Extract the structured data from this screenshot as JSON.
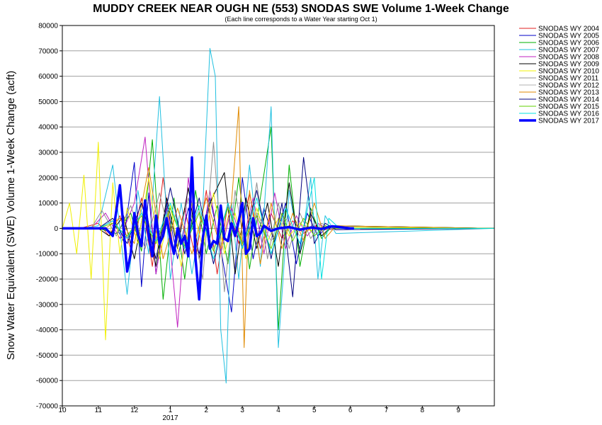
{
  "chart_data": {
    "type": "line",
    "title": "MUDDY CREEK NEAR OUGH NE (553) SNODAS SWE Volume 1-Week Change",
    "subtitle": "(Each line corresponds to a Water Year starting Oct 1)",
    "ylabel": "Snow Water Equivalent (SWE) Volume 1-Week Change (acft)",
    "xlabel": "",
    "x_axis_units": "month (10 = Oct 1 of water-year start, 13 = Jan 1, 22 = Oct 1 end)",
    "xlim": [
      10,
      22
    ],
    "ylim": [
      -70000,
      80000
    ],
    "x_ticks": [
      {
        "at": 10,
        "label": "10"
      },
      {
        "at": 11,
        "label": "11"
      },
      {
        "at": 12,
        "label": "12"
      },
      {
        "at": 13,
        "label": "1"
      },
      {
        "at": 14,
        "label": "2"
      },
      {
        "at": 15,
        "label": "3"
      },
      {
        "at": 16,
        "label": "4"
      },
      {
        "at": 17,
        "label": "5"
      },
      {
        "at": 18,
        "label": "6"
      },
      {
        "at": 19,
        "label": "7"
      },
      {
        "at": 20,
        "label": "8"
      },
      {
        "at": 21,
        "label": "9"
      }
    ],
    "year_label": {
      "at": 13,
      "label": "2017"
    },
    "y_ticks": [
      80000,
      70000,
      60000,
      50000,
      40000,
      30000,
      20000,
      10000,
      0,
      -10000,
      -20000,
      -30000,
      -40000,
      -50000,
      -60000,
      -70000
    ],
    "grid": "horizontal",
    "legend_position": "right",
    "series": [
      {
        "name": "SNODAS WY 2004",
        "color": "#e02020",
        "bold": false,
        "x": [
          10,
          10.5,
          11,
          11.3,
          11.6,
          11.9,
          12.2,
          12.5,
          12.8,
          13.1,
          13.4,
          13.7,
          14,
          14.3,
          14.6,
          14.9,
          15.2,
          15.5,
          15.8,
          16.1,
          16.4,
          16.7,
          17,
          17.3,
          17.6,
          22
        ],
        "y": [
          0,
          0,
          2000,
          -3000,
          5000,
          -8000,
          12000,
          -15000,
          20000,
          -10000,
          8000,
          -12000,
          15000,
          -18000,
          10000,
          -6000,
          14000,
          -8000,
          6000,
          -4000,
          3000,
          -2000,
          1000,
          -500,
          0,
          0
        ]
      },
      {
        "name": "SNODAS WY 2005",
        "color": "#0000c8",
        "bold": false,
        "x": [
          10,
          11,
          11.4,
          11.7,
          12,
          12.2,
          12.4,
          12.6,
          12.9,
          13.2,
          13.5,
          13.8,
          14.1,
          14.4,
          14.7,
          15,
          15.3,
          15.6,
          15.9,
          16.2,
          16.5,
          16.8,
          17.1,
          17.4,
          22
        ],
        "y": [
          0,
          0,
          3000,
          -5000,
          26000,
          -23000,
          14000,
          -18000,
          10000,
          -12000,
          8000,
          -10000,
          12000,
          -8000,
          -33000,
          20000,
          -12000,
          8000,
          -6000,
          10000,
          -14000,
          6000,
          -3000,
          1000,
          0
        ]
      },
      {
        "name": "SNODAS WY 2006",
        "color": "#00b000",
        "bold": false,
        "x": [
          10,
          11,
          11.5,
          11.9,
          12.2,
          12.5,
          12.8,
          13.1,
          13.4,
          13.7,
          14,
          14.3,
          14.6,
          14.9,
          15.2,
          15.5,
          15.8,
          16,
          16.3,
          16.6,
          16.9,
          17.2,
          17.5,
          22
        ],
        "y": [
          0,
          0,
          -2000,
          6000,
          -9000,
          35000,
          -28000,
          12000,
          -20000,
          15000,
          -10000,
          9000,
          -14000,
          20000,
          -16000,
          12000,
          40000,
          -40000,
          25000,
          -15000,
          8000,
          -4000,
          1000,
          0
        ]
      },
      {
        "name": "SNODAS WY 2007",
        "color": "#20c0e0",
        "bold": false,
        "x": [
          10,
          10.5,
          11,
          11.4,
          11.8,
          12.1,
          12.4,
          12.7,
          13,
          13.3,
          13.6,
          13.9,
          14.1,
          14.25,
          14.4,
          14.55,
          14.7,
          14.9,
          15.2,
          15.5,
          15.8,
          16,
          16.3,
          16.6,
          16.9,
          17.1,
          17.3,
          17.6,
          22
        ],
        "y": [
          0,
          0,
          1000,
          25000,
          -26000,
          15000,
          -10000,
          52000,
          -20000,
          10000,
          -18000,
          8000,
          71000,
          60000,
          -40000,
          -61000,
          10000,
          -20000,
          25000,
          -15000,
          48000,
          -47000,
          15000,
          -10000,
          20000,
          -20000,
          5000,
          -2000,
          0
        ]
      },
      {
        "name": "SNODAS WY 2008",
        "color": "#c020c0",
        "bold": false,
        "x": [
          10,
          10.8,
          11.2,
          11.6,
          12,
          12.3,
          12.6,
          12.9,
          13.2,
          13.5,
          13.8,
          14.1,
          14.4,
          14.7,
          15,
          15.3,
          15.6,
          15.9,
          16.2,
          16.5,
          16.8,
          17.1,
          17.4,
          22
        ],
        "y": [
          0,
          0,
          6000,
          -4000,
          10000,
          36000,
          -18000,
          8000,
          -39000,
          20000,
          -12000,
          15000,
          -10000,
          8000,
          -6000,
          12000,
          -10000,
          14000,
          -8000,
          5000,
          -3000,
          2000,
          -500,
          0
        ]
      },
      {
        "name": "SNODAS WY 2009",
        "color": "#000000",
        "bold": false,
        "x": [
          10,
          11,
          11.3,
          11.7,
          12,
          12.3,
          12.6,
          12.9,
          13.2,
          13.5,
          13.8,
          14.1,
          14.5,
          14.8,
          15.1,
          15.4,
          15.7,
          16,
          16.3,
          16.6,
          16.9,
          17.2,
          17.5,
          22
        ],
        "y": [
          0,
          0,
          -3000,
          5000,
          -12000,
          10000,
          -15000,
          12000,
          -8000,
          16000,
          -12000,
          10000,
          22000,
          -18000,
          12000,
          -8000,
          10000,
          -15000,
          18000,
          -10000,
          6000,
          -3000,
          1000,
          0
        ]
      },
      {
        "name": "SNODAS WY 2010",
        "color": "#f0f000",
        "bold": false,
        "x": [
          10,
          10.2,
          10.4,
          10.6,
          10.8,
          11,
          11.2,
          11.4,
          11.6,
          11.8,
          12.1,
          12.4,
          12.7,
          13,
          13.3,
          13.6,
          13.9,
          14.2,
          14.5,
          14.8,
          15.1,
          15.4,
          15.7,
          16,
          16.3,
          16.6,
          16.9,
          17.2,
          22
        ],
        "y": [
          0,
          10000,
          -10000,
          21000,
          -20000,
          34000,
          -44000,
          18000,
          -10000,
          8000,
          -6000,
          20000,
          -12000,
          9000,
          -15000,
          10000,
          -8000,
          14000,
          -10000,
          6000,
          -12000,
          8000,
          -5000,
          4000,
          -3000,
          2000,
          -1000,
          500,
          0
        ]
      },
      {
        "name": "SNODAS WY 2011",
        "color": "#909090",
        "bold": false,
        "x": [
          10,
          10.8,
          11.1,
          11.5,
          11.9,
          12.3,
          12.7,
          13.1,
          13.5,
          13.9,
          14.2,
          14.5,
          14.8,
          15.1,
          15.4,
          15.7,
          16,
          16.3,
          16.6,
          16.9,
          17.2,
          17.5,
          22
        ],
        "y": [
          0,
          0,
          7000,
          -3000,
          9000,
          -8000,
          14000,
          -10000,
          12000,
          -20000,
          34000,
          -25000,
          15000,
          -10000,
          18000,
          -12000,
          10000,
          -8000,
          6000,
          -4000,
          2000,
          -500,
          0
        ]
      },
      {
        "name": "SNODAS WY 2012",
        "color": "#b0b0b0",
        "bold": false,
        "x": [
          10,
          11,
          11.4,
          11.8,
          12.2,
          12.6,
          13,
          13.4,
          13.8,
          14.2,
          14.6,
          15,
          15.4,
          15.8,
          16.2,
          16.6,
          17,
          17.4,
          22
        ],
        "y": [
          0,
          0,
          3000,
          -4000,
          6000,
          -5000,
          8000,
          -6000,
          7000,
          -8000,
          9000,
          -7000,
          6000,
          -5000,
          4000,
          -3000,
          2000,
          -500,
          0
        ]
      },
      {
        "name": "SNODAS WY 2013",
        "color": "#e08a00",
        "bold": false,
        "x": [
          10,
          11.2,
          11.6,
          12,
          12.4,
          12.8,
          13.2,
          13.6,
          14,
          14.4,
          14.7,
          14.9,
          15.05,
          15.2,
          15.5,
          15.8,
          16.1,
          16.4,
          16.7,
          17,
          17.3,
          17.6,
          22
        ],
        "y": [
          0,
          0,
          4000,
          -6000,
          24000,
          -12000,
          8000,
          -10000,
          12000,
          -8000,
          10000,
          48000,
          -47000,
          15000,
          -14000,
          10000,
          -8000,
          6000,
          -5000,
          10000,
          -4000,
          1000,
          0
        ]
      },
      {
        "name": "SNODAS WY 2014",
        "color": "#000080",
        "bold": false,
        "x": [
          10,
          11,
          11.4,
          11.8,
          12.2,
          12.6,
          13,
          13.4,
          13.8,
          14.2,
          14.6,
          15,
          15.4,
          15.8,
          16.1,
          16.4,
          16.7,
          17,
          17.3,
          17.6,
          22
        ],
        "y": [
          0,
          0,
          4000,
          -6000,
          10000,
          -12000,
          16000,
          -10000,
          12000,
          -14000,
          10000,
          -8000,
          15000,
          -12000,
          10000,
          -27000,
          28000,
          -6000,
          2000,
          -500,
          0
        ]
      },
      {
        "name": "SNODAS WY 2015",
        "color": "#60d000",
        "bold": false,
        "x": [
          10,
          11,
          11.4,
          11.8,
          12.2,
          12.6,
          13,
          13.4,
          13.8,
          14.2,
          14.6,
          15,
          15.4,
          15.8,
          16.1,
          16.4,
          16.7,
          17,
          17.3,
          17.6,
          22
        ],
        "y": [
          0,
          0,
          2000,
          -3000,
          5000,
          -6000,
          8000,
          -7000,
          6000,
          -9000,
          8000,
          -6000,
          5000,
          -8000,
          6000,
          -5000,
          4000,
          -3000,
          1000,
          0,
          0
        ]
      },
      {
        "name": "SNODAS WY 2016",
        "color": "#00e0e0",
        "bold": false,
        "x": [
          10,
          11,
          11.4,
          11.8,
          12.2,
          12.6,
          13,
          13.4,
          13.8,
          14.2,
          14.6,
          15,
          15.4,
          15.8,
          16.2,
          16.6,
          17,
          17.2,
          17.4,
          17.7,
          22
        ],
        "y": [
          0,
          0,
          3000,
          -4000,
          6000,
          -5000,
          10000,
          -8000,
          9000,
          -12000,
          10000,
          -8000,
          12000,
          -10000,
          8000,
          -6000,
          20000,
          -20000,
          4000,
          0,
          0
        ]
      },
      {
        "name": "SNODAS WY 2017",
        "color": "#0000ff",
        "bold": true,
        "x": [
          10,
          11.2,
          11.4,
          11.6,
          11.8,
          11.9,
          12.0,
          12.1,
          12.2,
          12.3,
          12.4,
          12.5,
          12.6,
          12.7,
          12.8,
          12.9,
          13.0,
          13.1,
          13.2,
          13.3,
          13.4,
          13.5,
          13.6,
          13.7,
          13.8,
          13.9,
          14.0,
          14.1,
          14.2,
          14.3,
          14.4,
          14.5,
          14.6,
          14.7,
          14.8,
          14.9,
          15.0,
          15.1,
          15.2,
          15.3,
          15.4,
          15.5,
          15.6,
          15.8,
          16.0,
          16.3,
          16.6,
          16.9,
          17.2,
          17.5,
          18.0,
          18.1
        ],
        "y": [
          0,
          0,
          -3000,
          17000,
          -17000,
          -10000,
          6000,
          -2000,
          -7000,
          11000,
          -3000,
          -11000,
          5000,
          -6000,
          -3000,
          4000,
          -4000,
          -10000,
          0,
          -6000,
          -3000,
          -11000,
          28000,
          -12000,
          -28000,
          -4000,
          5000,
          -8000,
          -5000,
          -6000,
          9000,
          -4000,
          -5000,
          2000,
          -3000,
          3000,
          10000,
          -10000,
          -8000,
          4000,
          -3000,
          -2000,
          1000,
          -1000,
          0,
          500,
          -500,
          300,
          -200,
          800,
          0,
          0
        ]
      }
    ]
  }
}
